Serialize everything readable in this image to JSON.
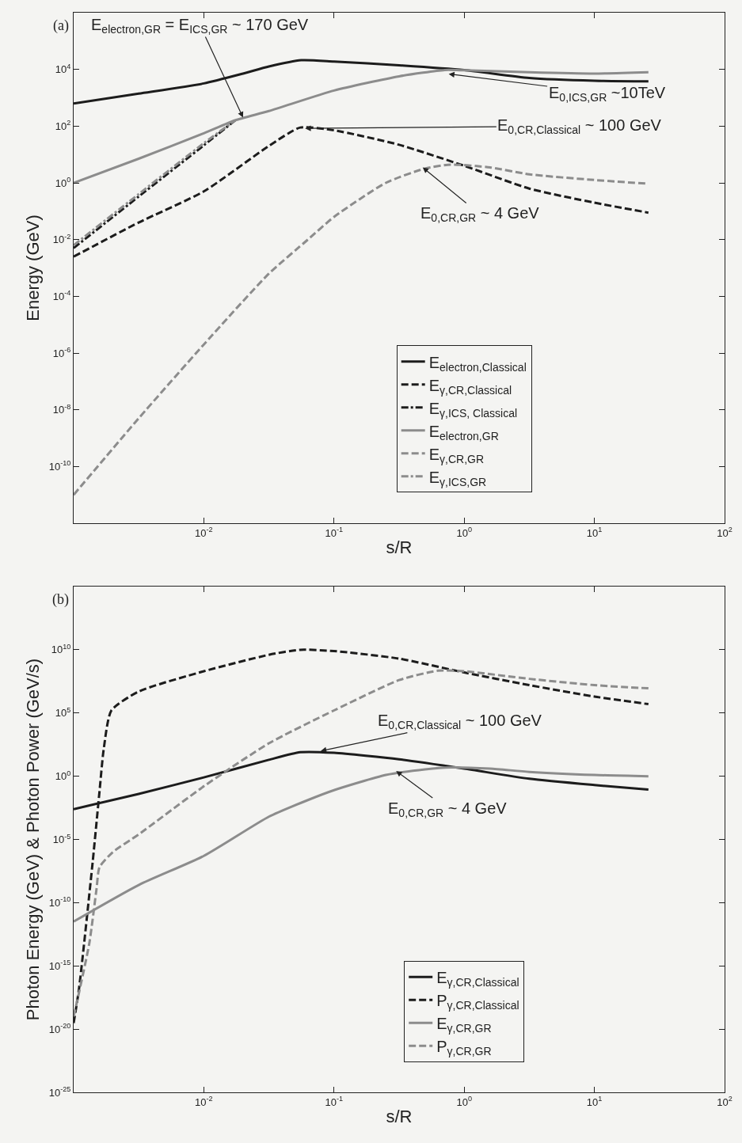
{
  "chart_data": [
    {
      "type": "line",
      "xlabel": "s/R",
      "ylabel": "Energy (GeV)",
      "log": "xy",
      "grid": false,
      "legend": "bottom",
      "xlim": [
        0.001,
        100
      ],
      "xticks": [
        {
          "value": 0.01,
          "label": "10$^{-2}$"
        },
        {
          "value": 0.1,
          "label": "10$^{-1}$"
        },
        {
          "value": 1,
          "label": "10$^{0}$"
        },
        {
          "value": 10,
          "label": "10$^{1}$"
        },
        {
          "value": 100,
          "label": "10$^{2}$"
        }
      ],
      "ylim": [
        1e-12,
        1000000.0
      ],
      "yticks": [
        {
          "value": 1e-10,
          "label": "10$^{-10}$"
        },
        {
          "value": 1e-08,
          "label": "10$^{-8}$"
        },
        {
          "value": 1e-06,
          "label": "10$^{-6}$"
        },
        {
          "value": 0.0001,
          "label": "10$^{-4}$"
        },
        {
          "value": 0.01,
          "label": "10$^{-2}$"
        },
        {
          "value": 1,
          "label": "10$^{0}$"
        },
        {
          "value": 100,
          "label": "10$^{2}$"
        },
        {
          "value": 10000,
          "label": "10$^{4}$"
        }
      ],
      "series": [
        {
          "name": "E$_{electron,Classical}$",
          "color": "#1c1c1c",
          "line_style": "solid",
          "x": [
            0.001,
            0.00316,
            0.01,
            0.02,
            0.0316,
            0.056,
            0.1,
            0.316,
            1,
            3.16,
            10,
            26
          ],
          "values": [
            630,
            1400,
            3200,
            7100,
            12600,
            21000,
            19000,
            14000,
            9500,
            5000,
            4000,
            3800
          ]
        },
        {
          "name": "E$_{γ,CR,Classical}$",
          "color": "#1c1c1c",
          "line_style": "dashed",
          "x": [
            0.001,
            0.00316,
            0.01,
            0.0316,
            0.055,
            0.1,
            0.316,
            1,
            3.16,
            10,
            26
          ],
          "values": [
            0.0025,
            0.04,
            0.5,
            20,
            89,
            71,
            22,
            4,
            0.63,
            0.2,
            0.089
          ]
        },
        {
          "name": "E$_{γ,ICS, Classical}$",
          "color": "#1c1c1c",
          "line_style": "dashdot",
          "x": [
            0.001,
            0.00316,
            0.01,
            0.0174
          ],
          "values": [
            0.005,
            0.33,
            21,
            160
          ]
        },
        {
          "name": "E$_{electron,GR}$",
          "color": "#8c8c8c",
          "line_style": "solid",
          "x": [
            0.001,
            0.00316,
            0.01,
            0.0174,
            0.0316,
            0.1,
            0.316,
            0.71,
            1,
            3.16,
            10,
            26
          ],
          "values": [
            1,
            7.1,
            56,
            160,
            340,
            1800,
            5700,
            9500,
            9300,
            7900,
            7100,
            7900
          ]
        },
        {
          "name": "E$_{γ,CR,GR}$",
          "color": "#8c8c8c",
          "line_style": "dashed",
          "x": [
            0.001,
            0.00316,
            0.01,
            0.0316,
            0.063,
            0.1,
            0.25,
            0.5,
            0.79,
            1.58,
            3.16,
            10,
            26
          ],
          "values": [
            1e-11,
            5e-09,
            2e-06,
            0.00063,
            0.01,
            0.063,
            1,
            3.2,
            4.4,
            3.5,
            2,
            1.26,
            0.93
          ]
        },
        {
          "name": "E$_{γ,ICS,GR}$",
          "color": "#8c8c8c",
          "line_style": "dashdot",
          "x": [
            0.001,
            0.00316,
            0.01,
            0.0174
          ],
          "values": [
            0.0063,
            0.4,
            25,
            160
          ]
        }
      ],
      "annotations": [
        "(a)",
        {
          "text": "E$_{electron,GR}$ = E$_{ICS,GR}$ ~ 170 GeV",
          "x": 0.02,
          "y": 200
        },
        {
          "text": "E$_{0,ICS,GR}$ ~10TeV",
          "x": 0.76,
          "y": 6900
        },
        {
          "text": "E$_{0,CR,Classical}$ ~ 100 GeV",
          "x": 0.06,
          "y": 83
        },
        {
          "text": "E$_{0,CR,GR}$ ~ 4 GeV",
          "x": 0.48,
          "y": 3.5
        }
      ]
    },
    {
      "type": "line",
      "xlabel": "s/R",
      "ylabel": "Photon Energy (GeV) & Photon Power (GeV/s)",
      "log": "xy",
      "grid": false,
      "legend": "bottom",
      "xlim": [
        0.001,
        100
      ],
      "xticks": [
        {
          "value": 0.01,
          "label": "10$^{-2}$"
        },
        {
          "value": 0.1,
          "label": "10$^{-1}$"
        },
        {
          "value": 1,
          "label": "10$^{0}$"
        },
        {
          "value": 10,
          "label": "10$^{1}$"
        },
        {
          "value": 100,
          "label": "10$^{2}$"
        }
      ],
      "ylim": [
        1e-25,
        1000000000000000.0
      ],
      "yticks": [
        {
          "value": 1e-25,
          "label": "10$^{-25}$"
        },
        {
          "value": 1e-20,
          "label": "10$^{-20}$"
        },
        {
          "value": 1e-15,
          "label": "10$^{-15}$"
        },
        {
          "value": 1e-10,
          "label": "10$^{-10}$"
        },
        {
          "value": 1e-05,
          "label": "10$^{-5}$"
        },
        {
          "value": 1,
          "label": "10$^{0}$"
        },
        {
          "value": 100000.0,
          "label": "10$^{5}$"
        },
        {
          "value": 10000000000.0,
          "label": "10$^{10}$"
        }
      ],
      "series": [
        {
          "name": "E$_{γ,CR,Classical}$",
          "color": "#1c1c1c",
          "line_style": "solid",
          "x": [
            0.001,
            0.00316,
            0.01,
            0.0316,
            0.055,
            0.1,
            0.316,
            1,
            3.16,
            10,
            26
          ],
          "values": [
            0.0025,
            0.04,
            0.8,
            20,
            79,
            71,
            22,
            4,
            0.63,
            0.2,
            0.089
          ]
        },
        {
          "name": "P$_{γ,CR,Classical}$",
          "color": "#1c1c1c",
          "line_style": "dashed",
          "x": [
            0.001,
            0.0011,
            0.0014,
            0.00158,
            0.0017,
            0.00195,
            0.00316,
            0.01,
            0.0316,
            0.055,
            0.1,
            0.316,
            1,
            3.16,
            10,
            26
          ],
          "values": [
            3e-20,
            1.6e-17,
            1.6e-07,
            0.063,
            126,
            160000,
            5000000,
            200000000,
            4000000000,
            10000000000,
            7900000000,
            2000000000,
            160000000,
            16000000,
            2000000,
            500000
          ]
        },
        {
          "name": "E$_{γ,CR,GR}$",
          "color": "#8c8c8c",
          "line_style": "solid",
          "x": [
            0.001,
            0.00316,
            0.01,
            0.0316,
            0.063,
            0.1,
            0.25,
            0.5,
            0.79,
            1.58,
            3.16,
            10,
            26
          ],
          "values": [
            3.2e-12,
            2.5e-09,
            5e-07,
            0.00063,
            0.013,
            0.079,
            1.26,
            3.5,
            5,
            4,
            2.2,
            1.26,
            1
          ]
        },
        {
          "name": "P$_{γ,CR,GR}$",
          "color": "#8c8c8c",
          "line_style": "dashed",
          "x": [
            0.001,
            0.0011,
            0.00132,
            0.0015,
            0.00158,
            0.002,
            0.00316,
            0.01,
            0.0316,
            0.1,
            0.316,
            0.63,
            1,
            3.16,
            10,
            26
          ],
          "values": [
            1e-19,
            7.9e-18,
            6.3e-14,
            1.3e-09,
            6.3e-08,
            1e-06,
            2.5e-05,
            0.16,
            400,
            160000,
            40000000,
            220000000,
            200000000,
            50000000,
            16000000,
            8900000
          ]
        }
      ],
      "annotations": [
        "(b)",
        {
          "text": "E$_{0,CR,Classical}$ ~ 100 GeV",
          "x": 0.079,
          "y": 100
        },
        {
          "text": "E$_{0,CR,GR}$ ~ 4 GeV",
          "x": 0.3,
          "y": 2.6
        }
      ]
    }
  ]
}
